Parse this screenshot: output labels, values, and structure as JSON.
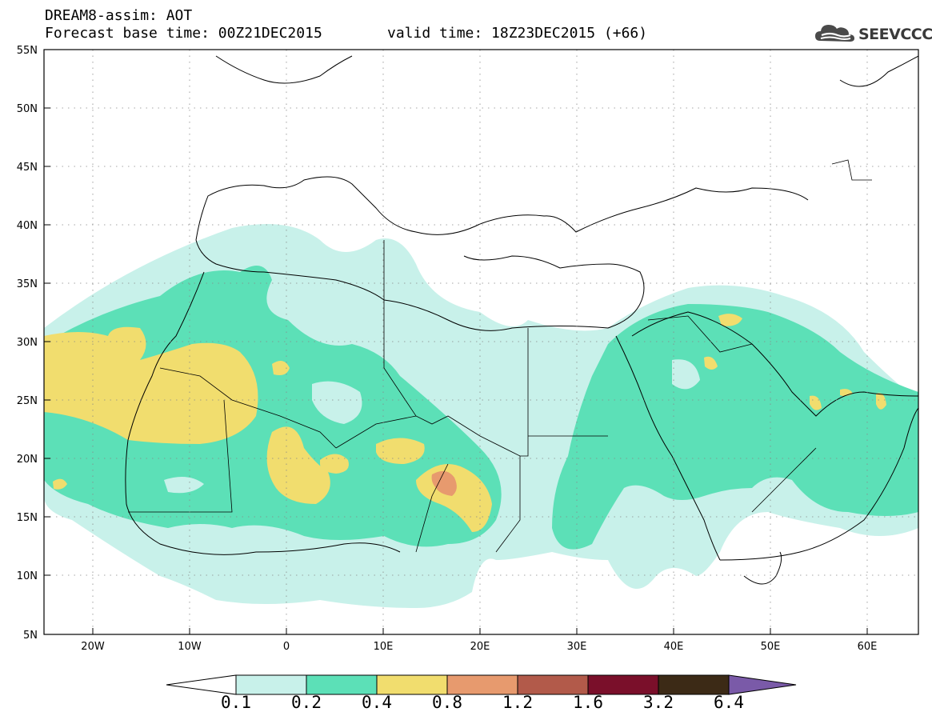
{
  "header": {
    "title_line1": "DREAM8-assim: AOT",
    "base_time": "Forecast base time: 00Z21DEC2015",
    "valid_time": "valid time: 18Z23DEC2015 (+66)"
  },
  "logo": {
    "text": "SEEVCCC",
    "icon": "cloud-logo-icon"
  },
  "map": {
    "lat_labels": [
      "55N",
      "50N",
      "45N",
      "40N",
      "35N",
      "30N",
      "25N",
      "20N",
      "15N",
      "10N",
      "5N"
    ],
    "lon_labels": [
      "20W",
      "10W",
      "0",
      "10E",
      "20E",
      "30E",
      "40E",
      "50E",
      "60E"
    ],
    "grid": "dotted",
    "extent": {
      "lon": [
        -25,
        65
      ],
      "lat": [
        5,
        55
      ]
    }
  },
  "colorbar": {
    "labels": [
      "0.1",
      "0.2",
      "0.4",
      "0.8",
      "1.2",
      "1.6",
      "3.2",
      "6.4"
    ],
    "colors": [
      "#ffffff",
      "#c8f1ea",
      "#5ce0b7",
      "#f1dd6e",
      "#e79a6e",
      "#b25a4a",
      "#7a0f2a",
      "#3c2a16",
      "#7a5aa8"
    ]
  }
}
